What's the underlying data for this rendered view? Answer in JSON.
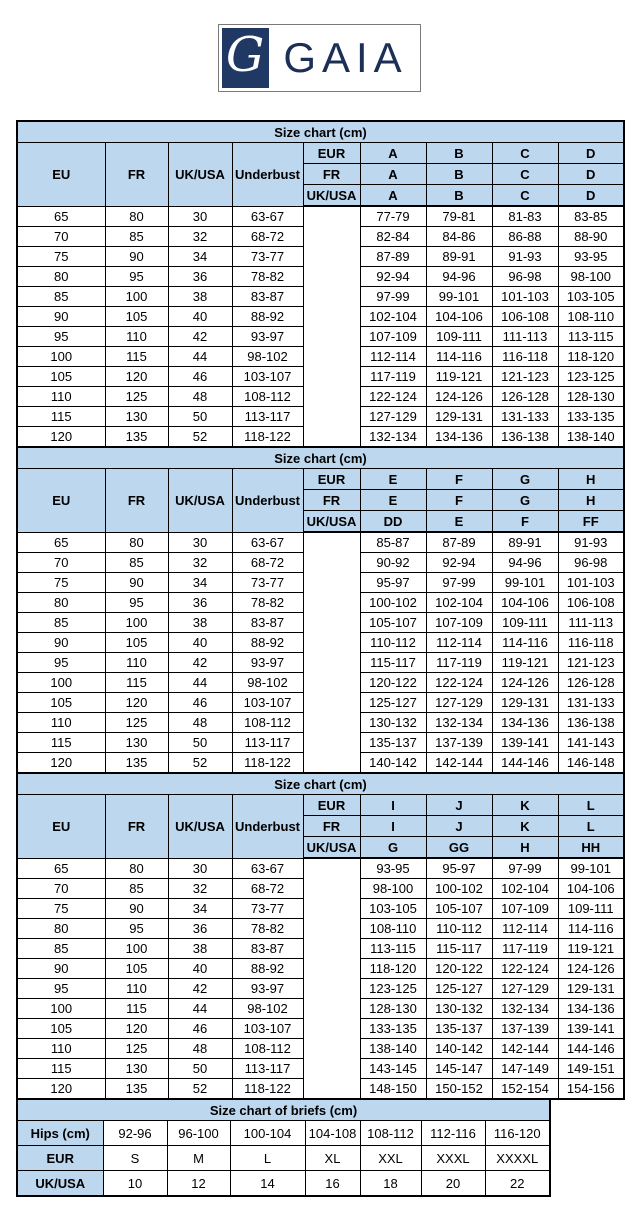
{
  "logo": {
    "monogram": "G",
    "brand": "GAIA"
  },
  "colors": {
    "navy": "#1F3864",
    "header_blue": "#BDD7EE",
    "border": "#000000"
  },
  "bra_size_charts": [
    {
      "title": "Size chart (cm)",
      "column_headers": [
        "EU",
        "FR",
        "UK/USA",
        "Underbust"
      ],
      "cup_header_rows": [
        {
          "region": "EUR",
          "cups": [
            "A",
            "B",
            "C",
            "D"
          ]
        },
        {
          "region": "FR",
          "cups": [
            "A",
            "B",
            "C",
            "D"
          ]
        },
        {
          "region": "UK/USA",
          "cups": [
            "A",
            "B",
            "C",
            "D"
          ]
        }
      ],
      "rows": [
        {
          "eu": "65",
          "fr": "80",
          "uk_usa": "30",
          "underbust": "63-67",
          "bust_ranges": [
            "77-79",
            "79-81",
            "81-83",
            "83-85"
          ]
        },
        {
          "eu": "70",
          "fr": "85",
          "uk_usa": "32",
          "underbust": "68-72",
          "bust_ranges": [
            "82-84",
            "84-86",
            "86-88",
            "88-90"
          ]
        },
        {
          "eu": "75",
          "fr": "90",
          "uk_usa": "34",
          "underbust": "73-77",
          "bust_ranges": [
            "87-89",
            "89-91",
            "91-93",
            "93-95"
          ]
        },
        {
          "eu": "80",
          "fr": "95",
          "uk_usa": "36",
          "underbust": "78-82",
          "bust_ranges": [
            "92-94",
            "94-96",
            "96-98",
            "98-100"
          ]
        },
        {
          "eu": "85",
          "fr": "100",
          "uk_usa": "38",
          "underbust": "83-87",
          "bust_ranges": [
            "97-99",
            "99-101",
            "101-103",
            "103-105"
          ]
        },
        {
          "eu": "90",
          "fr": "105",
          "uk_usa": "40",
          "underbust": "88-92",
          "bust_ranges": [
            "102-104",
            "104-106",
            "106-108",
            "108-110"
          ]
        },
        {
          "eu": "95",
          "fr": "110",
          "uk_usa": "42",
          "underbust": "93-97",
          "bust_ranges": [
            "107-109",
            "109-111",
            "111-113",
            "113-115"
          ]
        },
        {
          "eu": "100",
          "fr": "115",
          "uk_usa": "44",
          "underbust": "98-102",
          "bust_ranges": [
            "112-114",
            "114-116",
            "116-118",
            "118-120"
          ]
        },
        {
          "eu": "105",
          "fr": "120",
          "uk_usa": "46",
          "underbust": "103-107",
          "bust_ranges": [
            "117-119",
            "119-121",
            "121-123",
            "123-125"
          ]
        },
        {
          "eu": "110",
          "fr": "125",
          "uk_usa": "48",
          "underbust": "108-112",
          "bust_ranges": [
            "122-124",
            "124-126",
            "126-128",
            "128-130"
          ]
        },
        {
          "eu": "115",
          "fr": "130",
          "uk_usa": "50",
          "underbust": "113-117",
          "bust_ranges": [
            "127-129",
            "129-131",
            "131-133",
            "133-135"
          ]
        },
        {
          "eu": "120",
          "fr": "135",
          "uk_usa": "52",
          "underbust": "118-122",
          "bust_ranges": [
            "132-134",
            "134-136",
            "136-138",
            "138-140"
          ]
        }
      ]
    },
    {
      "title": "Size chart (cm)",
      "column_headers": [
        "EU",
        "FR",
        "UK/USA",
        "Underbust"
      ],
      "cup_header_rows": [
        {
          "region": "EUR",
          "cups": [
            "E",
            "F",
            "G",
            "H"
          ]
        },
        {
          "region": "FR",
          "cups": [
            "E",
            "F",
            "G",
            "H"
          ]
        },
        {
          "region": "UK/USA",
          "cups": [
            "DD",
            "E",
            "F",
            "FF"
          ]
        }
      ],
      "rows": [
        {
          "eu": "65",
          "fr": "80",
          "uk_usa": "30",
          "underbust": "63-67",
          "bust_ranges": [
            "85-87",
            "87-89",
            "89-91",
            "91-93"
          ]
        },
        {
          "eu": "70",
          "fr": "85",
          "uk_usa": "32",
          "underbust": "68-72",
          "bust_ranges": [
            "90-92",
            "92-94",
            "94-96",
            "96-98"
          ]
        },
        {
          "eu": "75",
          "fr": "90",
          "uk_usa": "34",
          "underbust": "73-77",
          "bust_ranges": [
            "95-97",
            "97-99",
            "99-101",
            "101-103"
          ]
        },
        {
          "eu": "80",
          "fr": "95",
          "uk_usa": "36",
          "underbust": "78-82",
          "bust_ranges": [
            "100-102",
            "102-104",
            "104-106",
            "106-108"
          ]
        },
        {
          "eu": "85",
          "fr": "100",
          "uk_usa": "38",
          "underbust": "83-87",
          "bust_ranges": [
            "105-107",
            "107-109",
            "109-111",
            "111-113"
          ]
        },
        {
          "eu": "90",
          "fr": "105",
          "uk_usa": "40",
          "underbust": "88-92",
          "bust_ranges": [
            "110-112",
            "112-114",
            "114-116",
            "116-118"
          ]
        },
        {
          "eu": "95",
          "fr": "110",
          "uk_usa": "42",
          "underbust": "93-97",
          "bust_ranges": [
            "115-117",
            "117-119",
            "119-121",
            "121-123"
          ]
        },
        {
          "eu": "100",
          "fr": "115",
          "uk_usa": "44",
          "underbust": "98-102",
          "bust_ranges": [
            "120-122",
            "122-124",
            "124-126",
            "126-128"
          ]
        },
        {
          "eu": "105",
          "fr": "120",
          "uk_usa": "46",
          "underbust": "103-107",
          "bust_ranges": [
            "125-127",
            "127-129",
            "129-131",
            "131-133"
          ]
        },
        {
          "eu": "110",
          "fr": "125",
          "uk_usa": "48",
          "underbust": "108-112",
          "bust_ranges": [
            "130-132",
            "132-134",
            "134-136",
            "136-138"
          ]
        },
        {
          "eu": "115",
          "fr": "130",
          "uk_usa": "50",
          "underbust": "113-117",
          "bust_ranges": [
            "135-137",
            "137-139",
            "139-141",
            "141-143"
          ]
        },
        {
          "eu": "120",
          "fr": "135",
          "uk_usa": "52",
          "underbust": "118-122",
          "bust_ranges": [
            "140-142",
            "142-144",
            "144-146",
            "146-148"
          ]
        }
      ]
    },
    {
      "title": "Size chart (cm)",
      "column_headers": [
        "EU",
        "FR",
        "UK/USA",
        "Underbust"
      ],
      "cup_header_rows": [
        {
          "region": "EUR",
          "cups": [
            "I",
            "J",
            "K",
            "L"
          ]
        },
        {
          "region": "FR",
          "cups": [
            "I",
            "J",
            "K",
            "L"
          ]
        },
        {
          "region": "UK/USA",
          "cups": [
            "G",
            "GG",
            "H",
            "HH"
          ]
        }
      ],
      "rows": [
        {
          "eu": "65",
          "fr": "80",
          "uk_usa": "30",
          "underbust": "63-67",
          "bust_ranges": [
            "93-95",
            "95-97",
            "97-99",
            "99-101"
          ]
        },
        {
          "eu": "70",
          "fr": "85",
          "uk_usa": "32",
          "underbust": "68-72",
          "bust_ranges": [
            "98-100",
            "100-102",
            "102-104",
            "104-106"
          ]
        },
        {
          "eu": "75",
          "fr": "90",
          "uk_usa": "34",
          "underbust": "73-77",
          "bust_ranges": [
            "103-105",
            "105-107",
            "107-109",
            "109-111"
          ]
        },
        {
          "eu": "80",
          "fr": "95",
          "uk_usa": "36",
          "underbust": "78-82",
          "bust_ranges": [
            "108-110",
            "110-112",
            "112-114",
            "114-116"
          ]
        },
        {
          "eu": "85",
          "fr": "100",
          "uk_usa": "38",
          "underbust": "83-87",
          "bust_ranges": [
            "113-115",
            "115-117",
            "117-119",
            "119-121"
          ]
        },
        {
          "eu": "90",
          "fr": "105",
          "uk_usa": "40",
          "underbust": "88-92",
          "bust_ranges": [
            "118-120",
            "120-122",
            "122-124",
            "124-126"
          ]
        },
        {
          "eu": "95",
          "fr": "110",
          "uk_usa": "42",
          "underbust": "93-97",
          "bust_ranges": [
            "123-125",
            "125-127",
            "127-129",
            "129-131"
          ]
        },
        {
          "eu": "100",
          "fr": "115",
          "uk_usa": "44",
          "underbust": "98-102",
          "bust_ranges": [
            "128-130",
            "130-132",
            "132-134",
            "134-136"
          ]
        },
        {
          "eu": "105",
          "fr": "120",
          "uk_usa": "46",
          "underbust": "103-107",
          "bust_ranges": [
            "133-135",
            "135-137",
            "137-139",
            "139-141"
          ]
        },
        {
          "eu": "110",
          "fr": "125",
          "uk_usa": "48",
          "underbust": "108-112",
          "bust_ranges": [
            "138-140",
            "140-142",
            "142-144",
            "144-146"
          ]
        },
        {
          "eu": "115",
          "fr": "130",
          "uk_usa": "50",
          "underbust": "113-117",
          "bust_ranges": [
            "143-145",
            "145-147",
            "147-149",
            "149-151"
          ]
        },
        {
          "eu": "120",
          "fr": "135",
          "uk_usa": "52",
          "underbust": "118-122",
          "bust_ranges": [
            "148-150",
            "150-152",
            "152-154",
            "154-156"
          ]
        }
      ]
    }
  ],
  "briefs_size_chart": {
    "title": "Size chart of briefs (cm)",
    "rows": [
      {
        "label": "Hips (cm)",
        "values": [
          "92-96",
          "96-100",
          "100-104",
          "104-108",
          "108-112",
          "112-116",
          "116-120"
        ]
      },
      {
        "label": "EUR",
        "values": [
          "S",
          "M",
          "L",
          "XL",
          "XXL",
          "XXXL",
          "XXXXL"
        ]
      },
      {
        "label": "UK/USA",
        "values": [
          "10",
          "12",
          "14",
          "16",
          "18",
          "20",
          "22"
        ]
      }
    ]
  }
}
